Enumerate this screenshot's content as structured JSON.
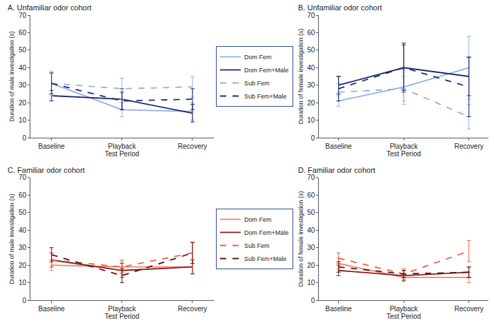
{
  "chart_data": [
    {
      "type": "line",
      "title": "A. Unfamiliar odor cohort",
      "x_label": "Test Period",
      "y_label": "Duration of male investigation (s)",
      "categories": [
        "Baseline",
        "Playback",
        "Recovery"
      ],
      "ylim": [
        0,
        70
      ],
      "yticks": [
        0,
        10,
        20,
        30,
        40,
        50,
        60,
        70
      ],
      "grid": false,
      "legend": "right",
      "series": [
        {
          "name": "Dom Fem",
          "color": "#8fb0e0",
          "line_style": "solid",
          "values": [
            31,
            16,
            15
          ],
          "errors": [
            6,
            4,
            5
          ]
        },
        {
          "name": "Dom Fem+Male",
          "color": "#1b2a6b",
          "line_style": "solid",
          "values": [
            24,
            22,
            14
          ],
          "errors": [
            3,
            6,
            5
          ]
        },
        {
          "name": "Sub Fem",
          "color": "#8fb0e0",
          "line_style": "dashed",
          "values": [
            31,
            28,
            29
          ],
          "errors": [
            7,
            6,
            6
          ]
        },
        {
          "name": "Sub Fem+Male",
          "color": "#1b2a6b",
          "line_style": "dashed",
          "values": [
            31,
            21,
            22
          ],
          "errors": [
            6,
            5,
            6
          ]
        }
      ]
    },
    {
      "type": "line",
      "title": "B. Unfamiliar odor cohort",
      "x_label": "Test Period",
      "y_label": "Duration of female investigation (s)",
      "categories": [
        "Baseline",
        "Playback",
        "Recovery"
      ],
      "ylim": [
        0,
        70
      ],
      "yticks": [
        0,
        10,
        20,
        30,
        40,
        50,
        60,
        70
      ],
      "grid": false,
      "series": [
        {
          "name": "Dom Fem",
          "color": "#8fb0e0",
          "line_style": "solid",
          "values": [
            21,
            29,
            40
          ],
          "errors": [
            3,
            10,
            18
          ]
        },
        {
          "name": "Dom Fem+Male",
          "color": "#1b2a6b",
          "line_style": "solid",
          "values": [
            30,
            40,
            35
          ],
          "errors": [
            5,
            14,
            11
          ]
        },
        {
          "name": "Sub Fem",
          "color": "#8fb0e0",
          "line_style": "dashed",
          "values": [
            26,
            28,
            12
          ],
          "errors": [
            5,
            7,
            7
          ]
        },
        {
          "name": "Sub Fem+Male",
          "color": "#1b2a6b",
          "line_style": "dashed",
          "values": [
            28,
            40,
            29
          ],
          "errors": [
            7,
            13,
            17
          ]
        }
      ]
    },
    {
      "type": "line",
      "title": "C. Familiar odor cohort",
      "x_label": "Test Period",
      "y_label": "Duration of male investigation (s)",
      "categories": [
        "Baseline",
        "Playback",
        "Recovery"
      ],
      "ylim": [
        0,
        70
      ],
      "yticks": [
        0,
        10,
        20,
        30,
        40,
        50,
        60,
        70
      ],
      "grid": false,
      "legend": "right",
      "series": [
        {
          "name": "Dom Fem",
          "color": "#f0806a",
          "line_style": "solid",
          "values": [
            20,
            19,
            19
          ],
          "errors": [
            3,
            3,
            4
          ]
        },
        {
          "name": "Dom Fem+Male",
          "color": "#8b1a1a",
          "line_style": "solid",
          "values": [
            23,
            17,
            19
          ],
          "errors": [
            4,
            4,
            4
          ]
        },
        {
          "name": "Sub Fem",
          "color": "#f0603c",
          "line_style": "dashed",
          "values": [
            23,
            19,
            27
          ],
          "errors": [
            4,
            4,
            6
          ]
        },
        {
          "name": "Sub Fem+Male",
          "color": "#5a1010",
          "line_style": "dashed",
          "values": [
            26,
            14,
            27
          ],
          "errors": [
            4,
            4,
            6
          ]
        }
      ]
    },
    {
      "type": "line",
      "title": "D. Familiar odor cohort",
      "x_label": "Test Period",
      "y_label": "Duration of female investigation (s)",
      "categories": [
        "Baseline",
        "Playback",
        "Recovery"
      ],
      "ylim": [
        0,
        70
      ],
      "yticks": [
        0,
        10,
        20,
        30,
        40,
        50,
        60,
        70
      ],
      "grid": false,
      "series": [
        {
          "name": "Dom Fem",
          "color": "#f0806a",
          "line_style": "solid",
          "values": [
            21,
            13,
            13
          ],
          "errors": [
            3,
            2,
            3
          ]
        },
        {
          "name": "Dom Fem+Male",
          "color": "#8b1a1a",
          "line_style": "solid",
          "values": [
            17,
            14,
            16
          ],
          "errors": [
            3,
            3,
            3
          ]
        },
        {
          "name": "Sub Fem",
          "color": "#f0603c",
          "line_style": "dashed",
          "values": [
            24,
            15,
            28
          ],
          "errors": [
            3,
            3,
            6
          ]
        },
        {
          "name": "Sub Fem+Male",
          "color": "#5a1010",
          "line_style": "dashed",
          "values": [
            19,
            15,
            16
          ],
          "errors": [
            3,
            2,
            3
          ]
        }
      ]
    }
  ]
}
